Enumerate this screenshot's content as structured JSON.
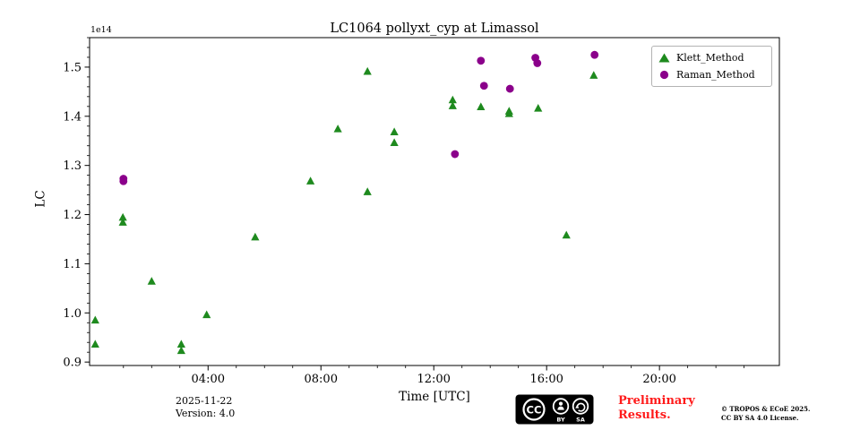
{
  "chart_data": {
    "type": "scatter",
    "title": "LC1064 pollyxt_cyp at Limassol",
    "xlabel": "Time [UTC]",
    "ylabel": "LC",
    "offset_text": "1e14",
    "xlim_hours": [
      -0.2,
      24.25
    ],
    "ylim": [
      0.893,
      1.56
    ],
    "grid": false,
    "legend_position": "upper right",
    "xticks": [
      {
        "hour": 4,
        "label": "04:00"
      },
      {
        "hour": 8,
        "label": "08:00"
      },
      {
        "hour": 12,
        "label": "12:00"
      },
      {
        "hour": 16,
        "label": "16:00"
      },
      {
        "hour": 20,
        "label": "20:00"
      }
    ],
    "yticks": [
      {
        "value": 0.9,
        "label": "0.9"
      },
      {
        "value": 1.0,
        "label": "1.0"
      },
      {
        "value": 1.1,
        "label": "1.1"
      },
      {
        "value": 1.2,
        "label": "1.2"
      },
      {
        "value": 1.3,
        "label": "1.3"
      },
      {
        "value": 1.4,
        "label": "1.4"
      },
      {
        "value": 1.5,
        "label": "1.5"
      }
    ],
    "series": [
      {
        "name": "Klett_Method",
        "marker": "triangle",
        "color": "#1e8a1e",
        "points": [
          [
            0.0,
            0.985
          ],
          [
            0.0,
            0.936
          ],
          [
            0.98,
            1.194
          ],
          [
            0.98,
            1.184
          ],
          [
            2.0,
            1.064
          ],
          [
            3.05,
            0.936
          ],
          [
            3.05,
            0.923
          ],
          [
            3.95,
            0.996
          ],
          [
            5.67,
            1.154
          ],
          [
            7.63,
            1.268
          ],
          [
            8.6,
            1.374
          ],
          [
            9.65,
            1.491
          ],
          [
            9.65,
            1.246
          ],
          [
            10.6,
            1.368
          ],
          [
            10.6,
            1.346
          ],
          [
            12.67,
            1.433
          ],
          [
            12.67,
            1.421
          ],
          [
            13.67,
            1.419
          ],
          [
            14.67,
            1.41
          ],
          [
            14.67,
            1.405
          ],
          [
            15.7,
            1.416
          ],
          [
            16.7,
            1.158
          ],
          [
            17.67,
            1.483
          ]
        ]
      },
      {
        "name": "Raman_Method",
        "marker": "circle",
        "color": "#8b008b",
        "points": [
          [
            1.0,
            1.273
          ],
          [
            1.0,
            1.268
          ],
          [
            12.75,
            1.323
          ],
          [
            13.67,
            1.513
          ],
          [
            13.78,
            1.462
          ],
          [
            14.7,
            1.456
          ],
          [
            15.6,
            1.519
          ],
          [
            15.67,
            1.508
          ],
          [
            17.7,
            1.525
          ]
        ]
      }
    ]
  },
  "footer": {
    "date": "2025-11-22",
    "version": "Version: 4.0",
    "preliminary_line1": "Preliminary",
    "preliminary_line2": "Results.",
    "copyright_line1": "© TROPOS & ECoE 2025.",
    "copyright_line2": "CC BY SA 4.0 License.",
    "cc_badge": {
      "cc": "CC",
      "by": "BY",
      "sa": "SA"
    }
  },
  "colors": {
    "klett": "#1e8a1e",
    "raman": "#8b008b",
    "preliminary_red": "#ff1a1a",
    "axis": "#000000",
    "legend_border": "#b3b3b3"
  }
}
